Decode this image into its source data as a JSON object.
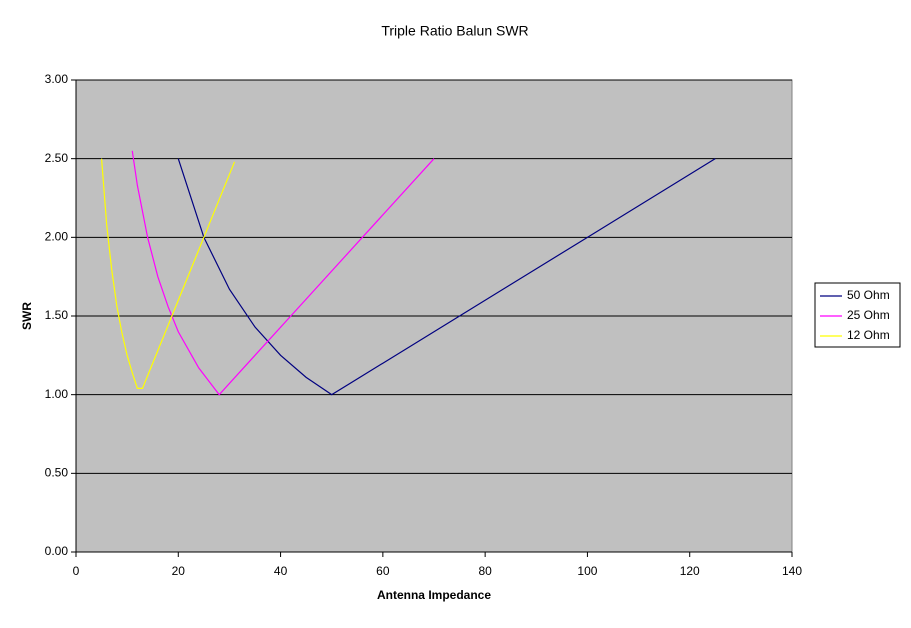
{
  "chart_data": {
    "type": "line",
    "title": "Triple Ratio Balun SWR",
    "x_label": "Antenna Impedance",
    "y_label": "SWR",
    "xlim": [
      0,
      140
    ],
    "xticks": [
      0,
      20,
      40,
      60,
      80,
      100,
      120,
      140
    ],
    "ylim": [
      0,
      3
    ],
    "yticks": [
      {
        "value": 0,
        "label": "0.00"
      },
      {
        "value": 0.5,
        "label": "0.50"
      },
      {
        "value": 1,
        "label": "1.00"
      },
      {
        "value": 1.5,
        "label": "1.50"
      },
      {
        "value": 2,
        "label": "2.00"
      },
      {
        "value": 2.5,
        "label": "2.50"
      },
      {
        "value": 3,
        "label": "3.00"
      }
    ],
    "grid": true,
    "legend": "right",
    "series": [
      {
        "name": "50 Ohm",
        "color": "#000080",
        "x": [
          20,
          25,
          30,
          35,
          40,
          45,
          50,
          60,
          75,
          100,
          125
        ],
        "values": [
          2.5,
          2.0,
          1.67,
          1.43,
          1.25,
          1.11,
          1.0,
          1.2,
          1.5,
          2.0,
          2.5
        ]
      },
      {
        "name": "25 Ohm",
        "color": "#ff00ff",
        "x": [
          11,
          12,
          14,
          16,
          18,
          20,
          24,
          28,
          35,
          42,
          56,
          70
        ],
        "values": [
          2.55,
          2.33,
          2.0,
          1.75,
          1.56,
          1.4,
          1.17,
          1.0,
          1.25,
          1.5,
          2.0,
          2.5
        ]
      },
      {
        "name": "12 Ohm",
        "color": "#ffff00",
        "x": [
          5,
          6,
          7,
          8,
          9,
          10,
          11,
          12,
          13,
          14,
          16,
          18,
          20,
          22,
          25,
          28,
          31
        ],
        "values": [
          2.5,
          2.08,
          1.79,
          1.56,
          1.39,
          1.25,
          1.14,
          1.04,
          1.04,
          1.12,
          1.28,
          1.44,
          1.6,
          1.76,
          2.0,
          2.24,
          2.48
        ]
      }
    ]
  }
}
